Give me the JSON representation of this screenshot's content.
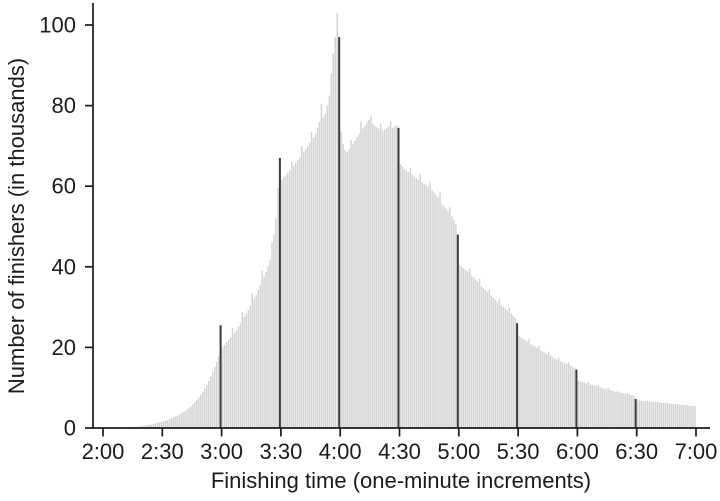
{
  "chart_data": {
    "type": "bar",
    "title": "",
    "xlabel": "Finishing time (one-minute increments)",
    "ylabel": "Number of finishers (in thousands)",
    "x_ticks": [
      "2:00",
      "2:30",
      "3:00",
      "3:30",
      "4:00",
      "4:30",
      "5:00",
      "5:30",
      "6:00",
      "6:30",
      "7:00"
    ],
    "y_ticks": [
      "0",
      "20",
      "40",
      "60",
      "80",
      "100"
    ],
    "y_tick_values": [
      0,
      20,
      40,
      60,
      80,
      100
    ],
    "ylim": [
      0,
      104
    ],
    "x_start_time": "2:00",
    "x_end_time": "7:00",
    "bin_width_minutes": 1,
    "grid": "off",
    "legend": "none",
    "values": [
      0.02,
      0.02,
      0.03,
      0.03,
      0.04,
      0.05,
      0.06,
      0.07,
      0.08,
      0.1,
      0.12,
      0.14,
      0.16,
      0.19,
      0.22,
      0.26,
      0.3,
      0.34,
      0.39,
      0.45,
      0.52,
      0.6,
      0.68,
      0.77,
      0.87,
      0.98,
      1.1,
      1.22,
      1.35,
      1.5,
      1.65,
      1.8,
      1.97,
      2.15,
      2.35,
      2.6,
      2.8,
      3.05,
      3.3,
      3.6,
      3.9,
      4.2,
      4.55,
      4.95,
      5.4,
      5.9,
      6.4,
      7.0,
      7.6,
      8.3,
      9.0,
      9.8,
      10.7,
      11.7,
      12.8,
      14.0,
      15.2,
      16.4,
      17.8,
      25.5,
      20.0,
      20.6,
      21.2,
      21.8,
      22.5,
      24.8,
      23.6,
      24.3,
      25.1,
      26.0,
      28.8,
      27.6,
      28.4,
      29.3,
      30.3,
      33.5,
      32.0,
      33.0,
      34.2,
      35.5,
      39.0,
      37.5,
      38.8,
      40.2,
      41.8,
      46.0,
      48.0,
      52.0,
      59.5,
      67.0,
      61.5,
      62.3,
      62.8,
      63.4,
      64.0,
      66.0,
      65.0,
      65.8,
      66.5,
      67.2,
      70.0,
      68.5,
      69.2,
      70.0,
      70.8,
      73.5,
      72.0,
      73.0,
      74.5,
      76.0,
      80.5,
      77.0,
      78.0,
      80.0,
      82.5,
      88.0,
      93.0,
      97.0,
      103.0,
      97.0,
      73.5,
      70.5,
      69.0,
      68.5,
      69.2,
      71.5,
      70.5,
      71.3,
      72.2,
      73.0,
      76.0,
      74.3,
      75.0,
      75.8,
      76.5,
      77.5,
      75.5,
      75.0,
      74.6,
      74.3,
      75.5,
      73.8,
      74.1,
      74.5,
      74.9,
      76.0,
      74.4,
      74.8,
      75.2,
      74.5,
      65.5,
      64.8,
      64.3,
      63.8,
      63.4,
      64.5,
      62.8,
      62.4,
      62.0,
      61.6,
      63.0,
      61.0,
      60.6,
      60.2,
      59.8,
      61.0,
      59.0,
      58.4,
      57.8,
      57.2,
      58.5,
      55.5,
      55.0,
      54.4,
      53.8,
      54.8,
      52.5,
      51.6,
      50.6,
      48.0,
      40.5,
      40.0,
      39.6,
      39.2,
      38.8,
      39.6,
      37.8,
      37.3,
      36.8,
      36.3,
      37.0,
      35.2,
      34.7,
      34.2,
      33.7,
      34.4,
      32.8,
      32.3,
      31.8,
      31.3,
      32.0,
      30.4,
      30.0,
      29.6,
      29.2,
      29.8,
      28.4,
      27.9,
      27.3,
      26.0,
      22.8,
      22.4,
      22.1,
      21.8,
      21.5,
      22.0,
      20.8,
      20.5,
      20.2,
      19.9,
      20.4,
      19.3,
      19.0,
      18.7,
      18.4,
      18.9,
      17.9,
      17.6,
      17.3,
      17.0,
      17.5,
      16.5,
      16.3,
      16.1,
      15.9,
      16.3,
      15.5,
      15.2,
      15.0,
      14.5,
      11.8,
      11.6,
      11.4,
      11.3,
      11.1,
      11.4,
      10.8,
      10.7,
      10.5,
      10.4,
      10.6,
      10.1,
      9.9,
      9.8,
      9.6,
      9.9,
      9.4,
      9.3,
      9.1,
      9.0,
      9.2,
      8.8,
      8.7,
      8.6,
      8.5,
      8.7,
      8.3,
      8.1,
      8.0,
      7.2,
      6.9,
      6.8,
      6.75,
      6.7,
      6.65,
      6.8,
      6.55,
      6.5,
      6.45,
      6.4,
      6.5,
      6.3,
      6.25,
      6.2,
      6.15,
      6.25,
      6.05,
      6.0,
      5.95,
      5.9,
      6.0,
      5.8,
      5.75,
      5.7,
      5.65,
      5.75,
      5.55,
      5.5,
      5.45,
      5.4
    ],
    "threshold_indices": [
      59,
      89,
      119,
      149,
      179,
      209,
      239,
      269
    ],
    "threshold_spikes": [
      {
        "time": "3:00",
        "value": 25.5
      },
      {
        "time": "3:30",
        "value": 67.0
      },
      {
        "time": "4:00",
        "value": 97.0
      },
      {
        "time": "4:30",
        "value": 74.5
      },
      {
        "time": "5:00",
        "value": 48.0
      },
      {
        "time": "5:30",
        "value": 26.0
      },
      {
        "time": "6:00",
        "value": 14.5
      },
      {
        "time": "6:30",
        "value": 7.2
      }
    ],
    "peak": {
      "time": "3:59",
      "value": 103
    },
    "colors": {
      "bar": "#d2d2d2",
      "threshold_bar": "#3a3a3a",
      "axis": "#1b1b1b",
      "text": "#1b1b1b",
      "background": "#ffffff"
    }
  }
}
